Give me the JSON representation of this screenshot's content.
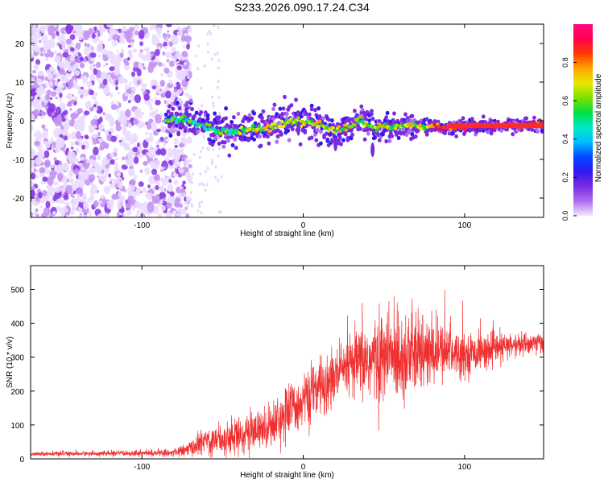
{
  "figure_title": "S233.2026.090.17.24.C34",
  "chart_data": [
    {
      "type": "heatmap",
      "title": "S233.2026.090.17.24.C34",
      "xlabel": "Height of straight line (km)",
      "ylabel": "Frequency (Hz)",
      "xlim": [
        -169,
        149
      ],
      "ylim": [
        -25,
        25
      ],
      "xticks": [
        -100,
        0,
        100
      ],
      "yticks": [
        -20,
        -10,
        0,
        10,
        20
      ],
      "colorbar": {
        "label": "Normalized spectral amplitude",
        "range": [
          0,
          1
        ],
        "ticks": [
          0.0,
          0.2,
          0.4,
          0.6,
          0.8
        ],
        "colormap": [
          "#f3e6ff",
          "#b06cf0",
          "#7a2be0",
          "#3018f0",
          "#0048ff",
          "#00bfff",
          "#00e8c8",
          "#00e040",
          "#7ce000",
          "#e8e800",
          "#ffa500",
          "#ff3a00",
          "#ff0050",
          "#ff0a80"
        ]
      },
      "ridge": {
        "x": [
          -85,
          -75,
          -65,
          -55,
          -45,
          -35,
          -25,
          -15,
          -5,
          0,
          5,
          10,
          15,
          20,
          25,
          30,
          35,
          40,
          45,
          50,
          55,
          60,
          70,
          80,
          90,
          100,
          110,
          120,
          130,
          140,
          149
        ],
        "y": [
          0,
          0.5,
          -1,
          -2.5,
          -3,
          -2,
          -2,
          -1,
          0,
          -1,
          0,
          -1,
          -2,
          -3,
          -2,
          -1,
          0,
          -1,
          -2,
          -1,
          -2,
          -1.5,
          -1,
          -1.5,
          -2,
          -1.5,
          -1.5,
          -1.3,
          -1.2,
          -1.2,
          -1.2
        ]
      },
      "noise_region_x": [
        -169,
        -80
      ]
    },
    {
      "type": "line",
      "xlabel": "Height of straight line (km)",
      "ylabel": "SNR (10 * v/v)",
      "xlim": [
        -169,
        149
      ],
      "ylim": [
        0,
        570
      ],
      "xticks": [
        -100,
        0,
        100
      ],
      "yticks": [
        0,
        100,
        200,
        300,
        400,
        500
      ],
      "color": "#f03030",
      "envelope": {
        "x": [
          -169,
          -140,
          -100,
          -80,
          -70,
          -60,
          -50,
          -40,
          -30,
          -20,
          -10,
          0,
          10,
          20,
          30,
          40,
          50,
          60,
          70,
          80,
          90,
          100,
          110,
          120,
          130,
          140,
          149
        ],
        "mean": [
          15,
          15,
          17,
          18,
          30,
          55,
          60,
          70,
          80,
          100,
          140,
          170,
          210,
          240,
          275,
          290,
          300,
          310,
          305,
          310,
          320,
          310,
          315,
          325,
          335,
          340,
          345
        ],
        "spread": [
          5,
          6,
          8,
          10,
          20,
          40,
          45,
          50,
          50,
          60,
          70,
          70,
          80,
          80,
          85,
          110,
          120,
          130,
          110,
          90,
          70,
          55,
          45,
          40,
          35,
          30,
          30
        ]
      }
    }
  ]
}
